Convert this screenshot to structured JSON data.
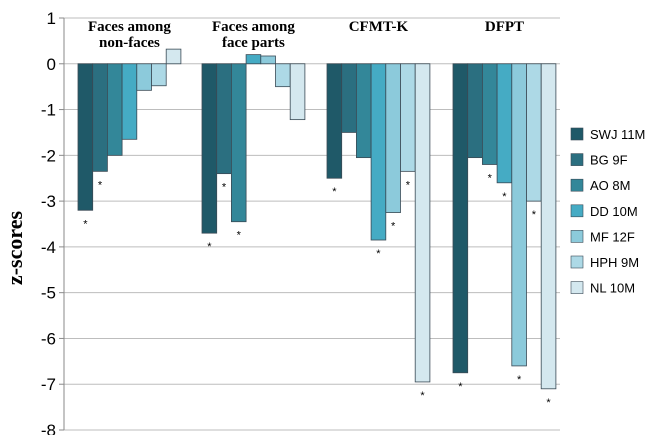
{
  "chart_data": {
    "type": "bar",
    "ylabel": "z-scores",
    "ylim": [
      -8,
      1
    ],
    "yticks": [
      "1",
      "0",
      "-1",
      "-2",
      "-3",
      "-4",
      "-5",
      "-6",
      "-7",
      "-8"
    ],
    "categories": [
      "Faces among non-faces",
      "Faces among face parts",
      "CFMT-K",
      "DFPT"
    ],
    "category_labels": [
      [
        "Faces among",
        "non-faces"
      ],
      [
        "Faces among",
        "face parts"
      ],
      [
        "CFMT-K"
      ],
      [
        "DFPT"
      ]
    ],
    "legend_position": "right",
    "series": [
      {
        "name": "SWJ 11M",
        "color": "#1f5968",
        "values": [
          -3.2,
          -3.7,
          -2.5,
          -6.75
        ]
      },
      {
        "name": "BG 9F",
        "color": "#2b6f80",
        "values": [
          -2.35,
          -2.4,
          -1.5,
          -2.05
        ]
      },
      {
        "name": "AO 8M",
        "color": "#338799",
        "values": [
          -2.0,
          -3.45,
          -2.05,
          -2.2
        ]
      },
      {
        "name": "DD 10M",
        "color": "#45abc4",
        "values": [
          -1.65,
          0.2,
          -3.85,
          -2.6
        ]
      },
      {
        "name": "MF 12F",
        "color": "#8ccadb",
        "values": [
          -0.58,
          0.17,
          -3.25,
          -6.6
        ]
      },
      {
        "name": "HPH 9M",
        "color": "#add9e6",
        "values": [
          -0.48,
          -0.5,
          -2.35,
          -3.0
        ]
      },
      {
        "name": "NL 10M",
        "color": "#d4e8ef",
        "values": [
          0.32,
          -1.22,
          -6.95,
          -7.1
        ]
      }
    ],
    "significance": [
      [
        true,
        true,
        false,
        false,
        false,
        false,
        false
      ],
      [
        true,
        true,
        true,
        false,
        false,
        false,
        false
      ],
      [
        true,
        false,
        false,
        true,
        true,
        true,
        true
      ],
      [
        true,
        false,
        true,
        true,
        true,
        true,
        true
      ]
    ],
    "significance_mark": "*"
  }
}
